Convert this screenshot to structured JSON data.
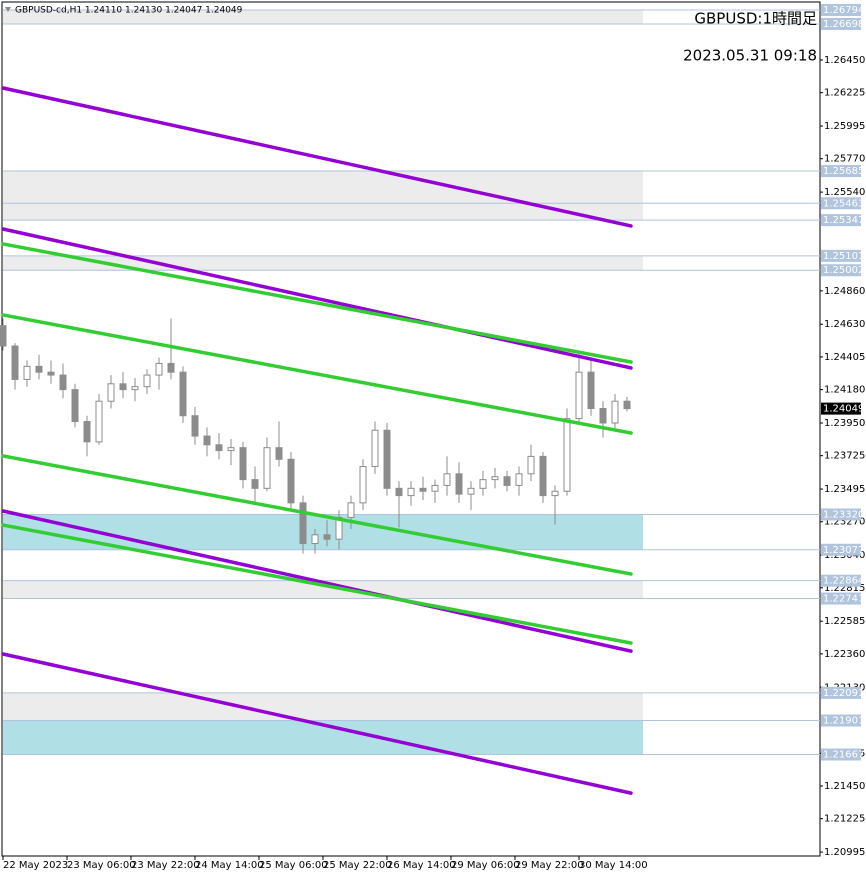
{
  "chart_data": {
    "type": "candlestick",
    "header": "GBPUSD-cd,H1  1.24110 1.24130 1.24047 1.24049",
    "title": "GBPUSD:1時間足",
    "subtitle": "2023.05.31 09:18",
    "xlim": [
      -0.75,
      204.25
    ],
    "ylim": [
      1.20968,
      1.26863
    ],
    "xticks": [
      {
        "value": 0,
        "label": "22 May 2023"
      },
      {
        "value": 16,
        "label": "23 May 06:00"
      },
      {
        "value": 32,
        "label": "23 May 22:00"
      },
      {
        "value": 48,
        "label": "24 May 14:00"
      },
      {
        "value": 64,
        "label": "25 May 06:00"
      },
      {
        "value": 80,
        "label": "25 May 22:00"
      },
      {
        "value": 96,
        "label": "26 May 14:00"
      },
      {
        "value": 112,
        "label": "29 May 06:00"
      },
      {
        "value": 128,
        "label": "29 May 22:00"
      },
      {
        "value": 144,
        "label": "30 May 14:00"
      }
    ],
    "yticks": [
      {
        "value": 1.2645,
        "label": "1.26450"
      },
      1.26225,
      1.25995,
      {
        "value": 1.2577,
        "label": "1.25770"
      },
      {
        "value": 1.2554,
        "label": "1.25540"
      },
      {
        "value": 1.2486,
        "label": "1.24860"
      },
      {
        "value": 1.2463,
        "label": "1.24630"
      },
      1.24405,
      {
        "value": 1.2418,
        "label": "1.24180"
      },
      {
        "value": 1.2395,
        "label": "1.23950"
      },
      1.23725,
      1.23495,
      {
        "value": 1.2327,
        "label": "1.23270"
      },
      {
        "value": 1.2304,
        "label": "1.23040"
      },
      1.22815,
      1.22585,
      {
        "value": 1.2236,
        "label": "1.22360"
      },
      {
        "value": 1.2213,
        "label": "1.22130"
      },
      1.21675,
      {
        "value": 1.2145,
        "label": "1.21450"
      },
      1.21225,
      1.20995
    ],
    "zones": [
      {
        "from": 1.26794,
        "to": 1.26698,
        "color": "#ececec"
      },
      {
        "from": 1.25685,
        "to": 1.25347,
        "color": "#ececec"
      },
      {
        "from": 1.25101,
        "to": 1.25002,
        "color": "#ececec"
      },
      {
        "from": 1.2332,
        "to": 1.23077,
        "color": "#b0dfe5"
      },
      {
        "from": 1.22864,
        "to": 1.22741,
        "color": "#ececec"
      },
      {
        "from": 1.22091,
        "to": 1.21901,
        "color": "#ececec"
      },
      {
        "from": 1.21901,
        "to": 1.21667,
        "color": "#b0dfe5"
      }
    ],
    "levels": [
      1.26794,
      1.26698,
      1.25685,
      1.25463,
      1.25347,
      1.25101,
      1.25002,
      {
        "value": 1.2332,
        "label": "1.23320"
      },
      1.23077,
      1.22864,
      1.22741,
      1.22091,
      1.21901,
      1.21667
    ],
    "level_color": "#b0c4de",
    "current_price": 1.24049,
    "trendlines": [
      {
        "color": "#9400d3",
        "x": [
          0,
          157
        ],
        "values": [
          1.26257,
          1.25307
        ]
      },
      {
        "color": "#9400d3",
        "x": [
          0,
          157
        ],
        "values": [
          1.25286,
          1.24329
        ]
      },
      {
        "color": "#32cd32",
        "x": [
          0,
          157
        ],
        "values": [
          1.25183,
          1.2437
        ]
      },
      {
        "color": "#32cd32",
        "x": [
          0,
          157
        ],
        "values": [
          1.24694,
          1.23881
        ]
      },
      {
        "color": "#32cd32",
        "x": [
          0,
          157
        ],
        "values": [
          1.23723,
          1.2291
        ]
      },
      {
        "color": "#9400d3",
        "x": [
          0,
          157
        ],
        "values": [
          1.23344,
          1.22379
        ]
      },
      {
        "color": "#32cd32",
        "x": [
          0,
          157
        ],
        "values": [
          1.23247,
          1.22435
        ]
      },
      {
        "color": "#9400d3",
        "x": [
          0,
          157
        ],
        "values": [
          1.22359,
          1.21401
        ]
      }
    ],
    "candle_color": "#8c8c8c",
    "x": [
      0,
      3,
      6,
      9,
      12,
      15,
      18,
      21,
      24,
      27,
      30,
      33,
      36,
      39,
      42,
      45,
      48,
      51,
      54,
      57,
      60,
      63,
      66,
      69,
      72,
      75,
      78,
      81,
      84,
      87,
      90,
      93,
      96,
      99,
      102,
      105,
      108,
      111,
      114,
      117,
      120,
      123,
      126,
      129,
      132,
      135,
      138,
      141,
      144,
      147,
      150,
      153,
      156
    ],
    "open": [
      1.2462,
      1.2448,
      1.2425,
      1.2434,
      1.243,
      1.2428,
      1.2418,
      1.2396,
      1.2382,
      1.241,
      1.2422,
      1.2418,
      1.242,
      1.2428,
      1.2436,
      1.243,
      1.24,
      1.2386,
      1.238,
      1.2376,
      1.2378,
      1.2356,
      1.235,
      1.2378,
      1.237,
      1.234,
      1.2312,
      1.2318,
      1.2315,
      1.233,
      1.234,
      1.2365,
      1.239,
      1.235,
      1.2345,
      1.235,
      1.2348,
      1.2352,
      1.236,
      1.2346,
      1.235,
      1.2356,
      1.2358,
      1.2352,
      1.236,
      1.2372,
      1.2345,
      1.2348,
      1.2398,
      1.243,
      1.2405,
      1.2395,
      1.241
    ],
    "high": [
      1.2467,
      1.245,
      1.2438,
      1.2442,
      1.2438,
      1.2436,
      1.2422,
      1.24,
      1.2415,
      1.2428,
      1.243,
      1.2426,
      1.2432,
      1.244,
      1.2467,
      1.2434,
      1.2406,
      1.2392,
      1.2388,
      1.2384,
      1.2382,
      1.2365,
      1.2385,
      1.2396,
      1.2375,
      1.2345,
      1.2322,
      1.2328,
      1.2335,
      1.2345,
      1.237,
      1.2396,
      1.2395,
      1.2355,
      1.2355,
      1.2358,
      1.2356,
      1.2372,
      1.2368,
      1.2355,
      1.2362,
      1.2364,
      1.2362,
      1.2365,
      1.238,
      1.2375,
      1.2352,
      1.2405,
      1.2445,
      1.2438,
      1.241,
      1.2415,
      1.2413
    ],
    "low": [
      1.2445,
      1.2418,
      1.242,
      1.2425,
      1.2422,
      1.2412,
      1.2392,
      1.2372,
      1.238,
      1.2405,
      1.2412,
      1.241,
      1.2415,
      1.2418,
      1.2425,
      1.2395,
      1.238,
      1.2372,
      1.237,
      1.2366,
      1.235,
      1.234,
      1.2348,
      1.2365,
      1.2335,
      1.2305,
      1.2305,
      1.231,
      1.2308,
      1.2322,
      1.2335,
      1.236,
      1.2345,
      1.2323,
      1.2338,
      1.2342,
      1.234,
      1.2345,
      1.234,
      1.2335,
      1.2345,
      1.235,
      1.2348,
      1.2345,
      1.2355,
      1.234,
      1.2325,
      1.2345,
      1.2395,
      1.24,
      1.2385,
      1.239,
      1.2403
    ],
    "close": [
      1.2448,
      1.2425,
      1.2434,
      1.243,
      1.2428,
      1.2418,
      1.2396,
      1.2382,
      1.241,
      1.2422,
      1.2418,
      1.242,
      1.2428,
      1.2436,
      1.243,
      1.24,
      1.2386,
      1.238,
      1.2376,
      1.2378,
      1.2356,
      1.235,
      1.2378,
      1.237,
      1.234,
      1.2312,
      1.2318,
      1.2315,
      1.233,
      1.234,
      1.2365,
      1.239,
      1.235,
      1.2345,
      1.235,
      1.2348,
      1.2352,
      1.236,
      1.2346,
      1.235,
      1.2356,
      1.2358,
      1.2352,
      1.236,
      1.2372,
      1.2345,
      1.2348,
      1.2398,
      1.243,
      1.2405,
      1.2395,
      1.241,
      1.24049
    ]
  }
}
